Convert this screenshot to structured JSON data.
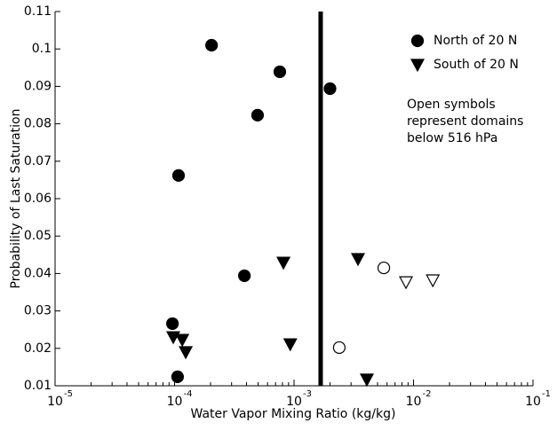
{
  "chart_data": {
    "type": "scatter",
    "xlabel": "Water Vapor Mixing Ratio (kg/kg)",
    "ylabel": "Probability of Last Saturation",
    "xscale": "log",
    "minor_ticks": true,
    "xlim": [
      1e-05,
      0.1
    ],
    "ylim": [
      0.01,
      0.11
    ],
    "xticks": [
      {
        "value": 1e-05,
        "label": "10",
        "exponent": "-5"
      },
      {
        "value": 0.0001,
        "label": "10",
        "exponent": "-4"
      },
      {
        "value": 0.001,
        "label": "10",
        "exponent": "-3"
      },
      {
        "value": 0.01,
        "label": "10",
        "exponent": "-2"
      },
      {
        "value": 0.1,
        "label": "10",
        "exponent": "-1"
      }
    ],
    "yticks": [
      0.01,
      0.02,
      0.03,
      0.04,
      0.05,
      0.06,
      0.07,
      0.08,
      0.09,
      0.1,
      0.11
    ],
    "vline": 0.00167,
    "vline_color": "#000000",
    "legend": "upper right",
    "annotation": [
      "Open symbols",
      "represent domains",
      "below 516 hPa"
    ],
    "series": [
      {
        "name": "North of 20 N",
        "marker": "circle",
        "filled": true,
        "color": "#000000",
        "x": [
          0.000204,
          0.00076,
          0.002,
          0.000495,
          0.000108,
          0.000384,
          9.6e-05,
          0.000106
        ],
        "values": [
          0.101,
          0.0939,
          0.0894,
          0.0823,
          0.0662,
          0.0394,
          0.0266,
          0.0124
        ]
      },
      {
        "name": "South of 20 N",
        "marker": "triangle-down",
        "filled": true,
        "color": "#000000",
        "x": [
          0.000815,
          0.00343,
          9.75e-05,
          0.000116,
          0.000124,
          0.00093,
          0.00407
        ],
        "values": [
          0.0429,
          0.0439,
          0.023,
          0.0223,
          0.019,
          0.0211,
          0.0117
        ]
      },
      {
        "marker": "circle",
        "filled": false,
        "color": "#000000",
        "x": [
          0.00564,
          0.00239
        ],
        "values": [
          0.0415,
          0.0202
        ]
      },
      {
        "marker": "triangle-down",
        "filled": false,
        "color": "#000000",
        "x": [
          0.00865,
          0.0145
        ],
        "values": [
          0.0377,
          0.0382
        ]
      }
    ]
  }
}
